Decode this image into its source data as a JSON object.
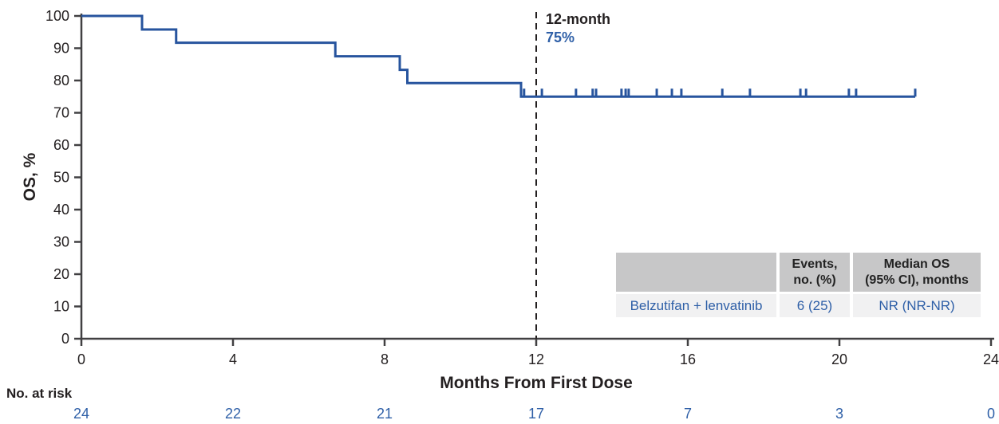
{
  "colors": {
    "curve": "#27549e",
    "text_blue": "#2e5fa7",
    "axis": "#414042",
    "black": "#231f20",
    "table_header_bg": "#c7c7c8",
    "table_row_bg": "#f1f1f2"
  },
  "y_axis": {
    "title": "OS, %",
    "ticks": [
      0,
      10,
      20,
      30,
      40,
      50,
      60,
      70,
      80,
      90,
      100
    ]
  },
  "x_axis": {
    "title": "Months From First Dose",
    "ticks": [
      0,
      4,
      8,
      12,
      16,
      20,
      24
    ]
  },
  "annotation": {
    "line1": "12-month",
    "line2": "75%"
  },
  "risk_table": {
    "label": "No. at risk",
    "times": [
      0,
      4,
      8,
      12,
      16,
      20,
      24
    ],
    "values": [
      24,
      22,
      21,
      17,
      7,
      3,
      0
    ]
  },
  "summary_table": {
    "headers": [
      "",
      "Events,\nno. (%)",
      "Median OS\n(95% CI), months"
    ],
    "rows": [
      [
        "Belzutifan + lenvatinib",
        "6 (25)",
        "NR (NR-NR)"
      ]
    ]
  },
  "chart_data": {
    "type": "line",
    "subtype": "kaplan-meier-step",
    "title": "",
    "xlabel": "Months From First Dose",
    "ylabel": "OS, %",
    "x_range": [
      0,
      24
    ],
    "y_range": [
      0,
      100
    ],
    "grid": false,
    "reference_line": {
      "x": 12,
      "label": "12-month",
      "value_label": "75%"
    },
    "series": [
      {
        "name": "Belzutifan + lenvatinib",
        "final_survival": 75,
        "steps": [
          {
            "time": 0,
            "survival": 100
          },
          {
            "time": 1.6,
            "survival": 95.8
          },
          {
            "time": 2.5,
            "survival": 91.7
          },
          {
            "time": 6.7,
            "survival": 87.5
          },
          {
            "time": 8.4,
            "survival": 83.3
          },
          {
            "time": 8.6,
            "survival": 79.2
          },
          {
            "time": 11.6,
            "survival": 75
          },
          {
            "time": 22.0,
            "survival": 75
          }
        ],
        "censor_times": [
          11.68,
          12.15,
          13.05,
          13.49,
          13.58,
          14.25,
          14.36,
          14.44,
          15.18,
          15.58,
          15.83,
          16.91,
          17.64,
          18.97,
          19.12,
          20.25,
          20.44,
          22.0
        ],
        "events_no_pct": "6 (25)",
        "median_os_95ci": "NR (NR-NR)",
        "twelve_month_os_pct": 75
      }
    ]
  }
}
